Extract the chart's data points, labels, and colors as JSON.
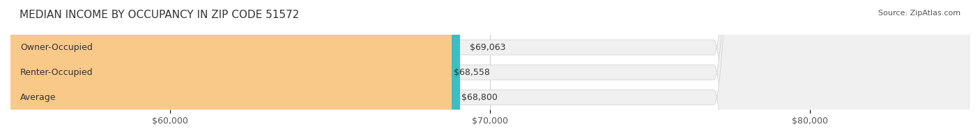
{
  "title": "MEDIAN INCOME BY OCCUPANCY IN ZIP CODE 51572",
  "source": "Source: ZipAtlas.com",
  "categories": [
    "Owner-Occupied",
    "Renter-Occupied",
    "Average"
  ],
  "values": [
    69063,
    68558,
    68800
  ],
  "bar_colors": [
    "#3bbfc4",
    "#c9aed4",
    "#f9c98a"
  ],
  "bar_bg_color": "#f0f0f0",
  "value_labels": [
    "$69,063",
    "$68,558",
    "$68,800"
  ],
  "xmin": 55000,
  "xmax": 85000,
  "xticks": [
    60000,
    70000,
    80000
  ],
  "xtick_labels": [
    "$60,000",
    "$70,000",
    "$80,000"
  ],
  "background_color": "#ffffff",
  "bar_height": 0.6,
  "title_fontsize": 11,
  "label_fontsize": 9,
  "value_fontsize": 9,
  "source_fontsize": 8
}
